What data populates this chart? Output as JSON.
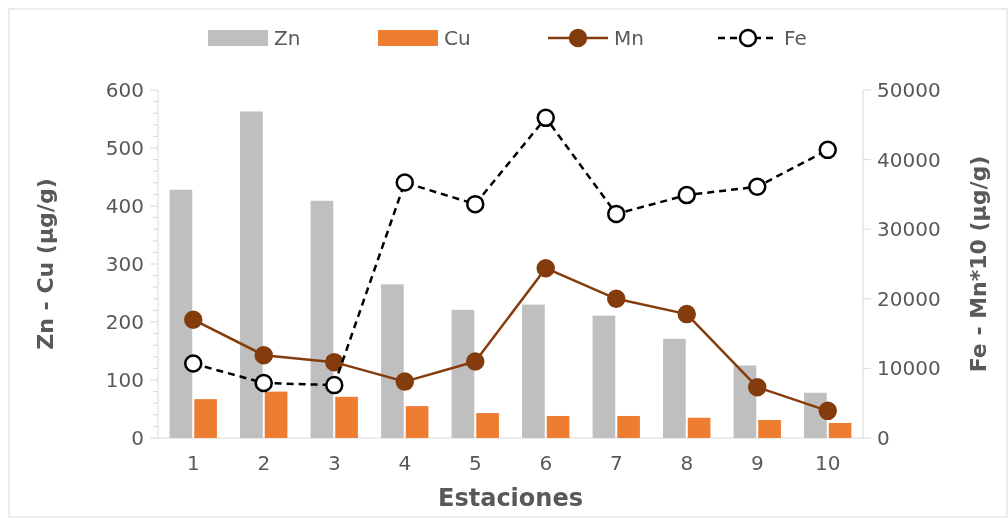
{
  "chart_data": {
    "type": "bar",
    "xlabel": "Estaciones",
    "ylabel": "Zn - Cu  (µg/g)",
    "y2label": "Fe - Mn*10 (µg/g)",
    "categories": [
      "1",
      "2",
      "3",
      "4",
      "5",
      "6",
      "7",
      "8",
      "9",
      "10"
    ],
    "series": [
      {
        "name": "Zn",
        "color": "#bfbfbf",
        "values": [
          428,
          563,
          409,
          265,
          221,
          230,
          211,
          171,
          125,
          78
        ]
      },
      {
        "name": "Cu",
        "color": "#ed7d31",
        "values": [
          67,
          80,
          71,
          55,
          43,
          38,
          38,
          35,
          31,
          26
        ]
      },
      {
        "name": "Mn",
        "type": "line",
        "axis": "y2",
        "color": "#843c0c",
        "marker": "circle",
        "line_style": "solid",
        "values": [
          17000,
          11900,
          10900,
          8100,
          11000,
          24400,
          20000,
          17800,
          7300,
          3900
        ]
      },
      {
        "name": "Fe",
        "type": "line",
        "axis": "y2",
        "color": "#000000",
        "marker": "circle",
        "line_style": "dashed",
        "values": [
          10700,
          7900,
          7600,
          36700,
          33600,
          46000,
          32200,
          34900,
          36100,
          41400
        ]
      }
    ],
    "ylim": [
      0,
      600
    ],
    "yticks": [
      0,
      {
        "value": 20,
        "label": null
      },
      {
        "value": 40,
        "label": null
      },
      {
        "value": 60,
        "label": null
      },
      {
        "value": 80,
        "label": null
      },
      100,
      {
        "value": 120,
        "label": null
      },
      {
        "value": 140,
        "label": null
      },
      {
        "value": 160,
        "label": null
      },
      {
        "value": 180,
        "label": null
      },
      200,
      {
        "value": 220,
        "label": null
      },
      {
        "value": 240,
        "label": null
      },
      {
        "value": 260,
        "label": null
      },
      {
        "value": 280,
        "label": null
      },
      300,
      {
        "value": 320,
        "label": null
      },
      {
        "value": 340,
        "label": null
      },
      {
        "value": 360,
        "label": null
      },
      {
        "value": 380,
        "label": null
      },
      400,
      {
        "value": 420,
        "label": null
      },
      {
        "value": 440,
        "label": null
      },
      {
        "value": 460,
        "label": null
      },
      {
        "value": 480,
        "label": null
      },
      500,
      {
        "value": 520,
        "label": null
      },
      {
        "value": 540,
        "label": null
      },
      {
        "value": 560,
        "label": null
      },
      {
        "value": 580,
        "label": null
      },
      600
    ],
    "y2lim": [
      0,
      50000
    ],
    "y2ticks": [
      0,
      10000,
      20000,
      30000,
      40000,
      50000
    ],
    "legend": "top"
  }
}
